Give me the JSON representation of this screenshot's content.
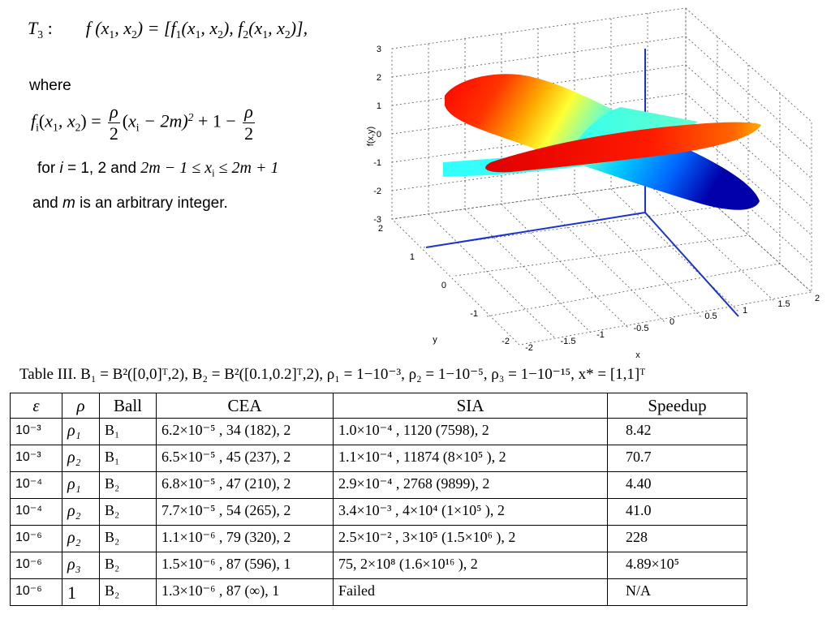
{
  "formula": {
    "t3_label": "T",
    "t3_sub": "3",
    "colon": ":",
    "t3_expr_html": "f</i> (<i>x</i><sub>1</sub>, <i>x</i><sub>2</sub>) = [<i>f</i><sub>1</sub>(<i>x</i><sub>1</sub>, <i>x</i><sub>2</sub>), <i>f</i><sub>2</sub>(<i>x</i><sub>1</sub>, <i>x</i><sub>2</sub>)],",
    "where": "where",
    "fi_lhs": "f",
    "fi_lhs_sub": "i",
    "fi_args": "(x",
    "rho": "ρ",
    "two": "2",
    "fi_mid": "(x",
    "fi_mid2": " − 2m)",
    "sq": "2",
    "fi_tail": " + 1 −",
    "for_prefix": "for ",
    "for_i": "i",
    "for_rest": " = 1, 2 and ",
    "range_expr": "2m − 1 ≤ x",
    "range_sub": "i",
    "range_tail": " ≤ 2m + 1",
    "and_prefix": "and ",
    "and_m": "m",
    "and_rest": " is an arbitrary integer."
  },
  "plot": {
    "zlabel": "f(x,y)",
    "xlabel": "x",
    "ylabel": "y",
    "z_ticks": [
      "3",
      "2",
      "1",
      "0",
      "-1",
      "-2",
      "-3"
    ],
    "y_ticks": [
      "2",
      "1",
      "0",
      "-1",
      "-2"
    ],
    "x_ticks": [
      "-2",
      "-1.5",
      "-1",
      "-0.5",
      "0",
      "0.5",
      "1",
      "1.5",
      "2"
    ],
    "surface_colors": [
      "#ff0000",
      "#ffaa00",
      "#ffff00",
      "#00ffff",
      "#0000cc"
    ]
  },
  "table": {
    "caption": "Table III.  B₁ = B²([0,0]ᵀ,2), B₂ = B²([0.1,0.2]ᵀ,2), ρ₁ = 1−10⁻³, ρ₂ = 1−10⁻⁵, ρ₃ = 1−10⁻¹⁵, x* = [1,1]ᵀ",
    "headers": [
      "ε",
      "ρ",
      "Ball",
      "CEA",
      "SIA",
      "Speedup"
    ],
    "rows": [
      [
        "10⁻³",
        "ρ₁",
        "B₁",
        "6.2×10⁻⁵ , 34 (182), 2",
        "1.0×10⁻⁴ , 1120 (7598), 2",
        "8.42"
      ],
      [
        "10⁻³",
        "ρ₂",
        "B₁",
        "6.5×10⁻⁵ , 45 (237), 2",
        "1.1×10⁻⁴ , 11874 (8×10⁵ ), 2",
        "70.7"
      ],
      [
        "10⁻⁴",
        "ρ₁",
        "B₂",
        "6.8×10⁻⁵ , 47 (210), 2",
        "2.9×10⁻⁴ , 2768 (9899), 2",
        "4.40"
      ],
      [
        "10⁻⁴",
        "ρ₂",
        "B₂",
        "7.7×10⁻⁵ , 54 (265), 2",
        "3.4×10⁻³ , 4×10⁴  (1×10⁵ ), 2",
        "41.0"
      ],
      [
        "10⁻⁶",
        "ρ₂",
        "B₂",
        "1.1×10⁻⁶ , 79 (320), 2",
        "2.5×10⁻² , 3×10⁵  (1.5×10⁶ ), 2",
        "228"
      ],
      [
        "10⁻⁶",
        "ρ₃",
        "B₂",
        "1.5×10⁻⁶ , 87 (596), 1",
        "75, 2×10⁸  (1.6×10¹⁶ ), 2",
        "4.89×10⁵"
      ],
      [
        "10⁻⁶",
        "1",
        "B₂",
        "1.3×10⁻⁶ , 87 (∞), 1",
        "Failed",
        "N/A"
      ]
    ]
  }
}
